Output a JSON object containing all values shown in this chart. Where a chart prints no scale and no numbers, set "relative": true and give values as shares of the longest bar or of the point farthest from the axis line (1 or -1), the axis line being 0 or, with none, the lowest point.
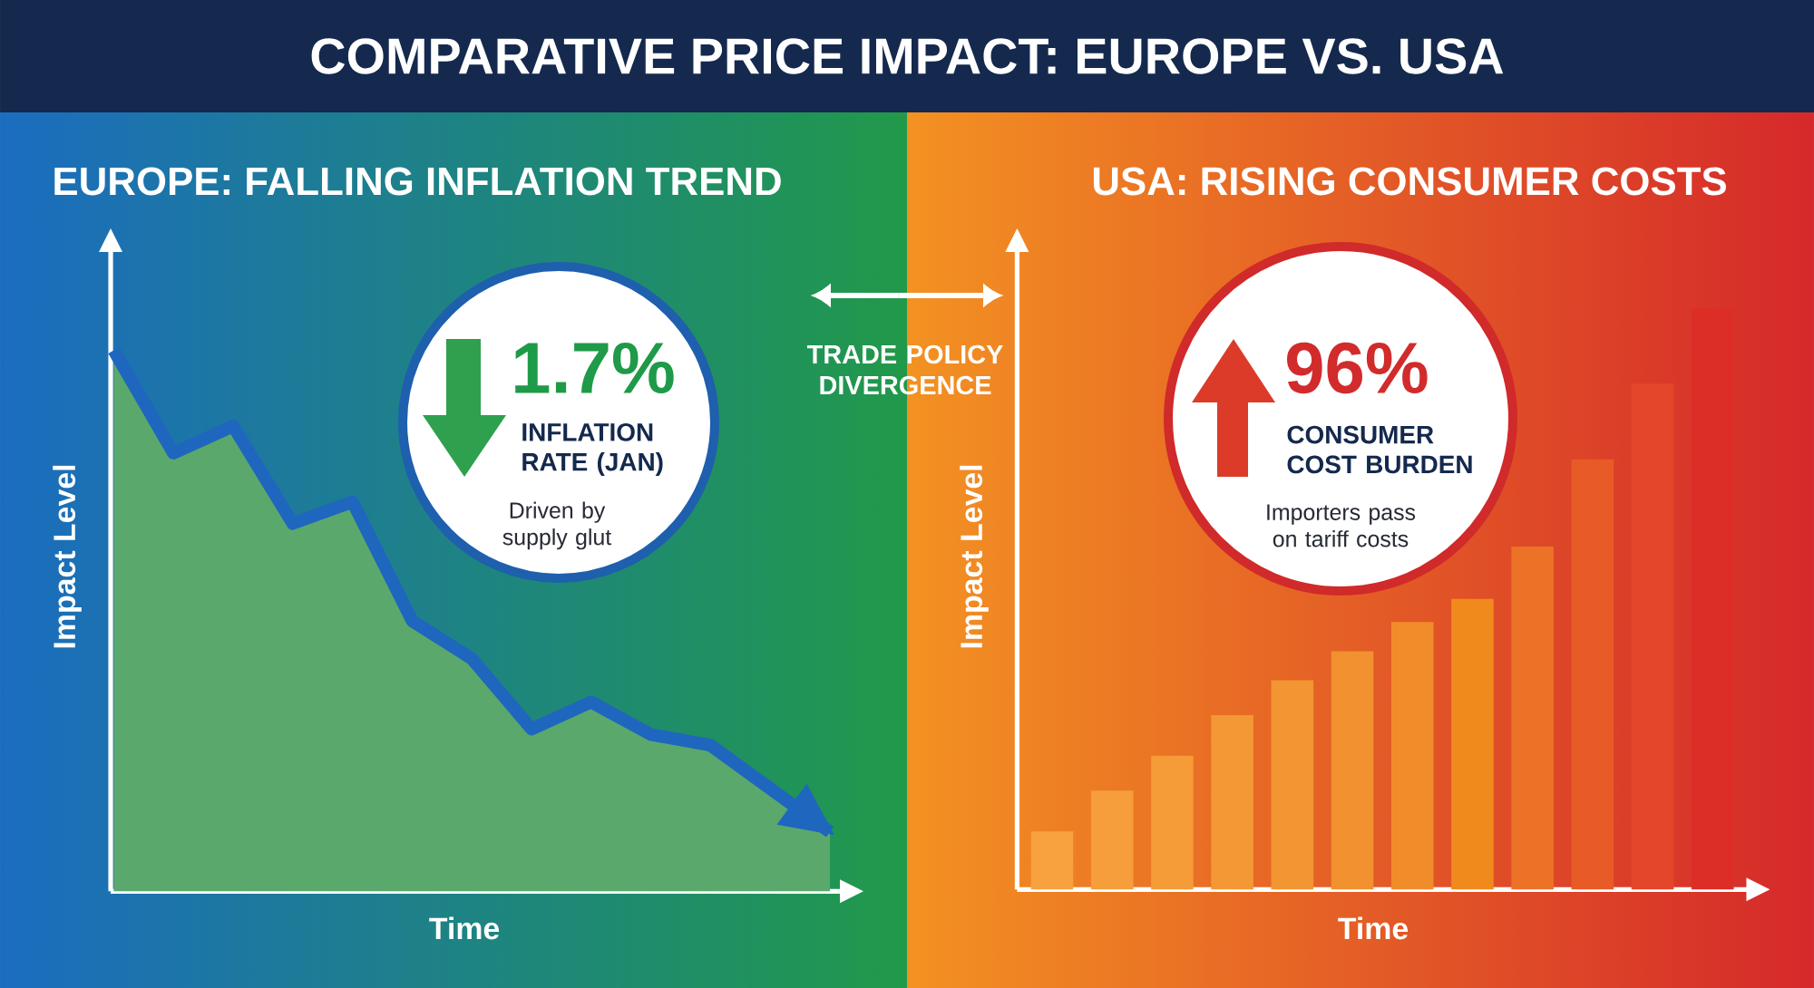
{
  "chart_data": [
    {
      "type": "other",
      "title": "COMPARATIVE PRICE IMPACT: EUROPE VS. USA",
      "annotations": [
        "TRADE POLICY DIVERGENCE"
      ]
    },
    {
      "type": "area",
      "title": "EUROPE: FALLING INFLATION TREND",
      "xlabel": "Time",
      "ylabel": "Impact Level",
      "relative": true,
      "categories": [
        null,
        null,
        null,
        null,
        null,
        null,
        null,
        null,
        null,
        null,
        null,
        null,
        null
      ],
      "series": [
        {
          "type": "area",
          "color": "#5aa86c",
          "values": [
            1.0,
            0.81,
            0.86,
            0.68,
            0.72,
            0.5,
            0.43,
            0.3,
            0.35,
            0.29,
            0.27,
            0.19,
            0.11
          ]
        },
        {
          "type": "line",
          "color": "#1f66bf",
          "values": [
            1.0,
            0.81,
            0.86,
            0.68,
            0.72,
            0.5,
            0.43,
            0.3,
            0.35,
            0.29,
            0.27,
            0.19,
            0.11
          ]
        }
      ],
      "annotations": [
        "1.7%",
        "INFLATION RATE (JAN)",
        "Driven by supply glut"
      ]
    },
    {
      "type": "bar",
      "title": "USA: RISING CONSUMER COSTS",
      "xlabel": "Time",
      "ylabel": "Impact Level",
      "relative": true,
      "categories": [
        null,
        null,
        null,
        null,
        null,
        null,
        null,
        null,
        null,
        null,
        null,
        null
      ],
      "values": [
        0.1,
        0.17,
        0.23,
        0.3,
        0.36,
        0.41,
        0.46,
        0.5,
        0.59,
        0.74,
        0.87,
        1.0
      ],
      "colors": [
        "#f7a13f",
        "#f69e3b",
        "#f59b38",
        "#f49835",
        "#f39532",
        "#f2912f",
        "#f18c2b",
        "#f08a1c",
        "#ec7227",
        "#e85b27",
        "#e3462a",
        "#dc2e27"
      ],
      "annotations": [
        "96%",
        "CONSUMER COST BURDEN",
        "Importers pass on tariff costs"
      ]
    }
  ]
}
